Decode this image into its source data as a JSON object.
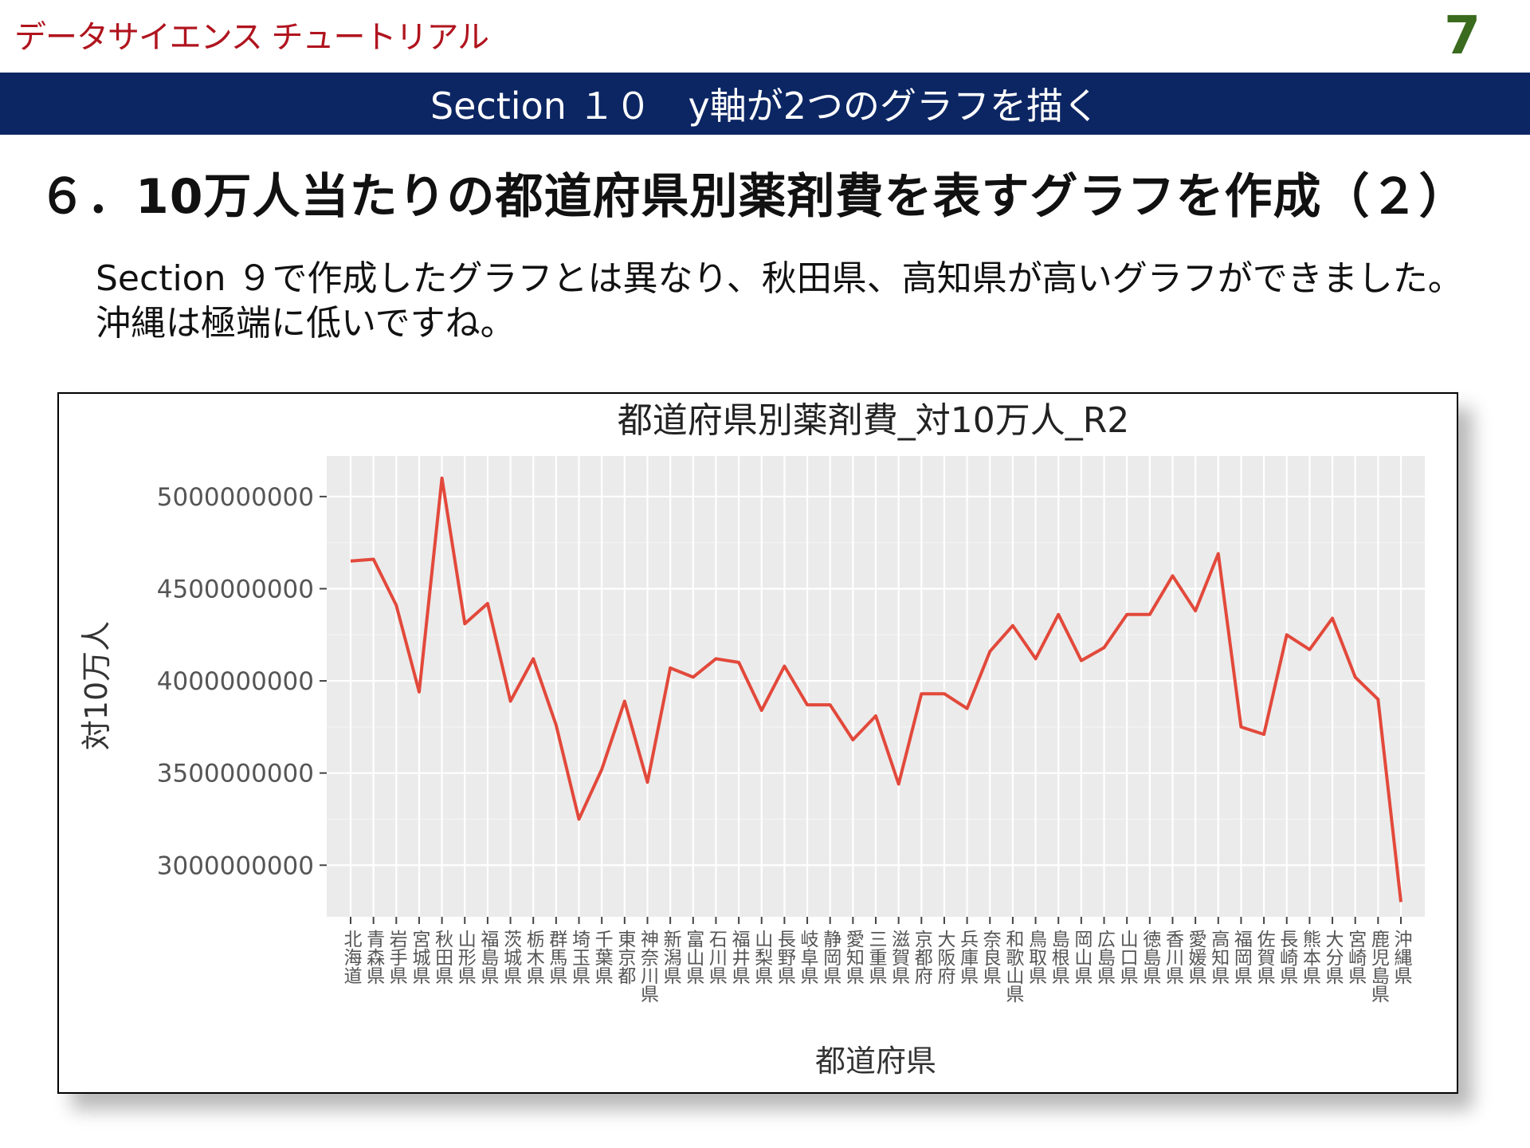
{
  "header": {
    "brand": "データサイエンス チュートリアル",
    "page_number": "7",
    "section_title": "Section １０　y軸が2つのグラフを描く",
    "colors": {
      "brand": "#b0141e",
      "section_bar": "#0c2663",
      "page_number": "#3a6b1e"
    }
  },
  "heading": "６．10万人当たりの都道府県別薬剤費を表すグラフを作成（２）",
  "description": {
    "line1": "Section ９で作成したグラフとは異なり、秋田県、高知県が高いグラフができました。",
    "line2": "沖縄は極端に低いですね。"
  },
  "chart_data": {
    "type": "line",
    "title": "都道府県別薬剤費_対10万人_R2",
    "xlabel": "都道府県",
    "ylabel": "対10万人",
    "ylim": [
      2720000000,
      5220000000
    ],
    "yticks": [
      3000000000,
      3500000000,
      4000000000,
      4500000000,
      5000000000
    ],
    "ytick_labels": [
      "3000000000",
      "3500000000",
      "4000000000",
      "4500000000",
      "5000000000"
    ],
    "grid": true,
    "line_color": "#e2493b",
    "categories": [
      "北海道",
      "青森県",
      "岩手県",
      "宮城県",
      "秋田県",
      "山形県",
      "福島県",
      "茨城県",
      "栃木県",
      "群馬県",
      "埼玉県",
      "千葉県",
      "東京都",
      "神奈川県",
      "新潟県",
      "富山県",
      "石川県",
      "福井県",
      "山梨県",
      "長野県",
      "岐阜県",
      "静岡県",
      "愛知県",
      "三重県",
      "滋賀県",
      "京都府",
      "大阪府",
      "兵庫県",
      "奈良県",
      "和歌山県",
      "鳥取県",
      "島根県",
      "岡山県",
      "広島県",
      "山口県",
      "徳島県",
      "香川県",
      "愛媛県",
      "高知県",
      "福岡県",
      "佐賀県",
      "長崎県",
      "熊本県",
      "大分県",
      "宮崎県",
      "鹿児島県",
      "沖縄県"
    ],
    "values": [
      4650000000,
      4660000000,
      4410000000,
      3940000000,
      5100000000,
      4310000000,
      4420000000,
      3890000000,
      4120000000,
      3760000000,
      3250000000,
      3520000000,
      3890000000,
      3450000000,
      4070000000,
      4020000000,
      4120000000,
      4100000000,
      3840000000,
      4080000000,
      3870000000,
      3870000000,
      3680000000,
      3810000000,
      3440000000,
      3930000000,
      3930000000,
      3850000000,
      4160000000,
      4300000000,
      4120000000,
      4360000000,
      4110000000,
      4180000000,
      4360000000,
      4360000000,
      4570000000,
      4380000000,
      4690000000,
      3750000000,
      3710000000,
      4250000000,
      4170000000,
      4340000000,
      4020000000,
      3900000000,
      2800000000
    ]
  }
}
